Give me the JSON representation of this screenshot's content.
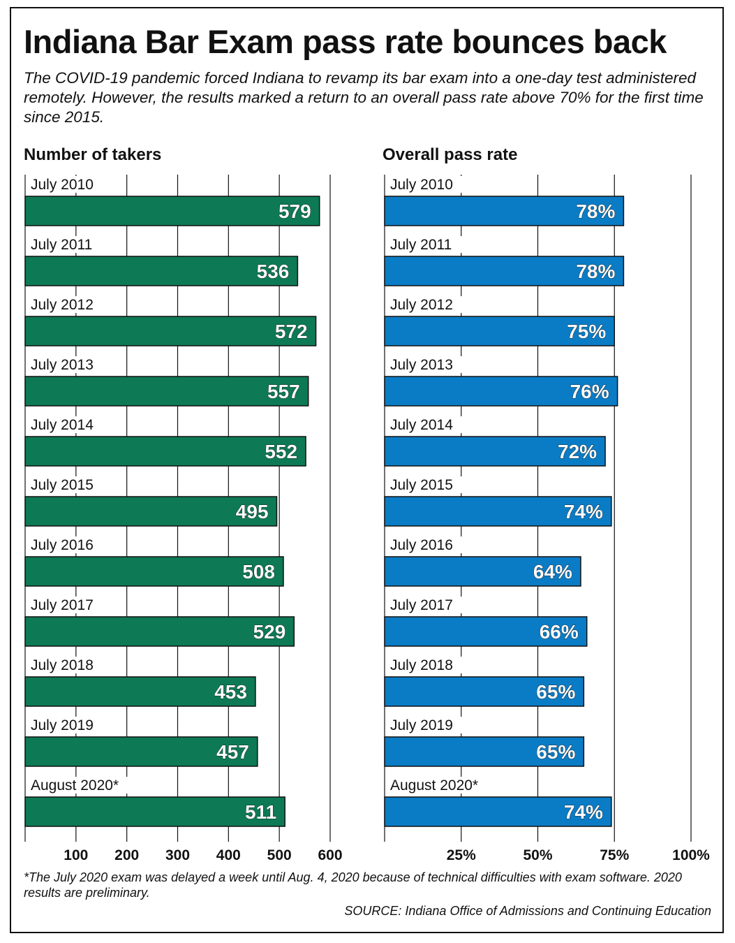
{
  "title": "Indiana Bar Exam pass rate bounces back",
  "subtitle": "The COVID-19 pandemic forced Indiana to revamp its bar exam into a one-day test administered remotely. However, the results marked a return to an overall pass rate above 70% for the first time since 2015.",
  "footnote": "*The July 2020 exam was delayed a week until Aug. 4, 2020 because of technical difficulties with exam software. 2020 results are preliminary.",
  "source": "SOURCE: Indiana Office of Admissions and Continuing Education",
  "colors": {
    "takers": "#0d7a55",
    "pass_rate": "#0a7cc6"
  },
  "chart_data": [
    {
      "type": "bar",
      "orientation": "horizontal",
      "title": "Number of takers",
      "categories": [
        "July 2010",
        "July 2011",
        "July 2012",
        "July 2013",
        "July 2014",
        "July 2015",
        "July 2016",
        "July 2017",
        "July 2018",
        "July 2019",
        "August 2020*"
      ],
      "values": [
        579,
        536,
        572,
        557,
        552,
        495,
        508,
        529,
        453,
        457,
        511
      ],
      "value_labels": [
        "579",
        "536",
        "572",
        "557",
        "552",
        "495",
        "508",
        "529",
        "453",
        "457",
        "511"
      ],
      "xlim": [
        0,
        600
      ],
      "ticks": [
        100,
        200,
        300,
        400,
        500,
        600
      ],
      "tick_labels": [
        "100",
        "200",
        "300",
        "400",
        "500",
        "600"
      ],
      "grid": true
    },
    {
      "type": "bar",
      "orientation": "horizontal",
      "title": "Overall pass rate",
      "categories": [
        "July 2010",
        "July 2011",
        "July 2012",
        "July 2013",
        "July 2014",
        "July 2015",
        "July 2016",
        "July 2017",
        "July 2018",
        "July 2019",
        "August 2020*"
      ],
      "values": [
        78,
        78,
        75,
        76,
        72,
        74,
        64,
        66,
        65,
        65,
        74
      ],
      "value_labels": [
        "78%",
        "78%",
        "75%",
        "76%",
        "72%",
        "74%",
        "64%",
        "66%",
        "65%",
        "65%",
        "74%"
      ],
      "xlim": [
        0,
        100
      ],
      "ticks": [
        25,
        50,
        75,
        100
      ],
      "tick_labels": [
        "25%",
        "50%",
        "75%",
        "100%"
      ],
      "grid": true
    }
  ]
}
